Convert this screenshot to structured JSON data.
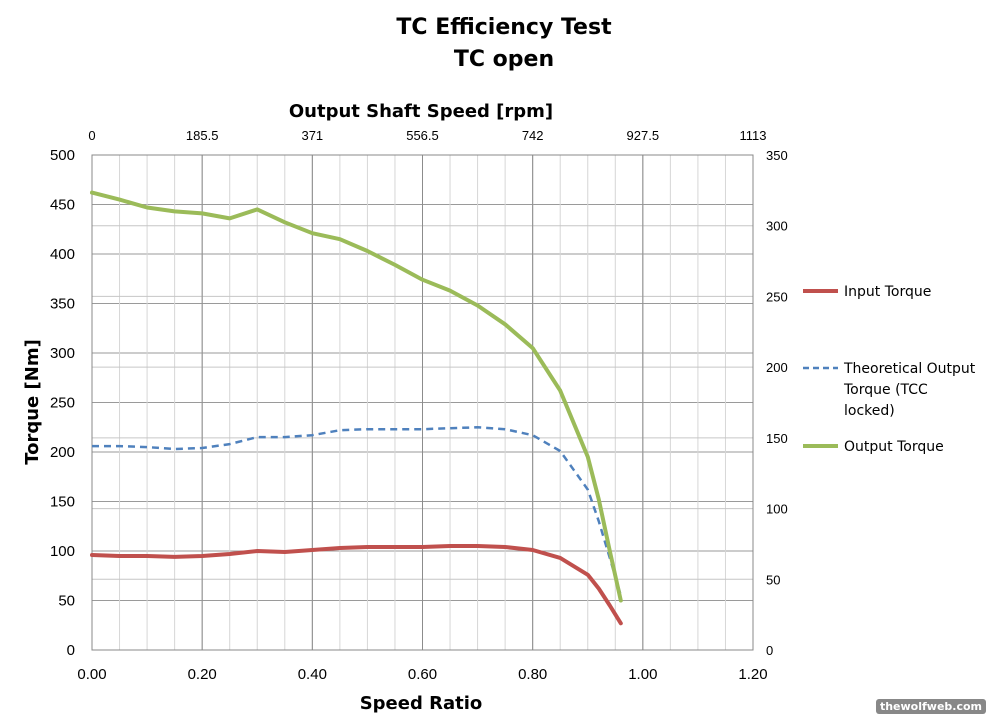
{
  "chart_data": {
    "type": "line",
    "title": [
      "TC Efficiency Test",
      "TC open"
    ],
    "xlabel": "Speed Ratio",
    "ylabel": "Torque [Nm]",
    "secondary_xlabel": "Output Shaft Speed [rpm]",
    "xlim": [
      0,
      1.2
    ],
    "ylim": [
      0,
      500
    ],
    "secondary_xlim": [
      0,
      1113
    ],
    "secondary_ylim": [
      0,
      350
    ],
    "x_ticks": [
      "0.00",
      "0.20",
      "0.40",
      "0.60",
      "0.80",
      "1.00",
      "1.20"
    ],
    "x_tick_values": [
      0,
      0.2,
      0.4,
      0.6,
      0.8,
      1.0,
      1.2
    ],
    "y_ticks": [
      "0",
      "50",
      "100",
      "150",
      "200",
      "250",
      "300",
      "350",
      "400",
      "450",
      "500"
    ],
    "y_tick_values": [
      0,
      50,
      100,
      150,
      200,
      250,
      300,
      350,
      400,
      450,
      500
    ],
    "top_ticks": [
      "0",
      "185.5",
      "371",
      "556.5",
      "742",
      "927.5",
      "1113"
    ],
    "top_tick_values": [
      0,
      185.5,
      371,
      556.5,
      742,
      927.5,
      1113
    ],
    "right_ticks": [
      "0",
      "50",
      "100",
      "150",
      "200",
      "250",
      "300",
      "350"
    ],
    "right_tick_values": [
      0,
      50,
      100,
      150,
      200,
      250,
      300,
      350
    ],
    "grid": true,
    "legend_position": "right",
    "series": [
      {
        "name": "Input Torque",
        "color": "#c0504d",
        "style": "solid",
        "x": [
          0,
          0.05,
          0.1,
          0.15,
          0.2,
          0.25,
          0.3,
          0.35,
          0.4,
          0.45,
          0.5,
          0.55,
          0.6,
          0.65,
          0.7,
          0.75,
          0.8,
          0.85,
          0.9,
          0.92,
          0.94,
          0.96
        ],
        "y": [
          96,
          95,
          95,
          94,
          95,
          97,
          100,
          99,
          101,
          103,
          104,
          104,
          104,
          105,
          105,
          104,
          101,
          93,
          76,
          62,
          45,
          27
        ]
      },
      {
        "name": "Theoretical Output Torque (TCC locked)",
        "legend_lines": [
          "Theoretical Output",
          "Torque (TCC",
          "locked)"
        ],
        "color": "#4f81bd",
        "style": "dashed",
        "x": [
          0,
          0.05,
          0.1,
          0.15,
          0.2,
          0.25,
          0.3,
          0.35,
          0.4,
          0.45,
          0.5,
          0.55,
          0.6,
          0.65,
          0.7,
          0.75,
          0.8,
          0.85,
          0.9,
          0.92,
          0.94,
          0.96
        ],
        "y": [
          206,
          206,
          205,
          203,
          204,
          208,
          215,
          215,
          217,
          222,
          223,
          223,
          223,
          224,
          225,
          223,
          217,
          201,
          162,
          130,
          93,
          55
        ]
      },
      {
        "name": "Output Torque",
        "color": "#9bbb59",
        "style": "solid",
        "x": [
          0,
          0.05,
          0.1,
          0.15,
          0.2,
          0.25,
          0.3,
          0.35,
          0.4,
          0.45,
          0.5,
          0.55,
          0.6,
          0.65,
          0.7,
          0.75,
          0.8,
          0.85,
          0.9,
          0.92,
          0.94,
          0.96
        ],
        "y": [
          462,
          455,
          447,
          443,
          441,
          436,
          445,
          432,
          421,
          415,
          403,
          389,
          374,
          363,
          348,
          329,
          305,
          262,
          195,
          152,
          100,
          50
        ]
      }
    ]
  },
  "watermark": "thewolfweb.com"
}
